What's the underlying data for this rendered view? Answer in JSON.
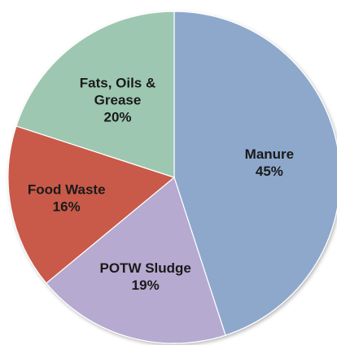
{
  "chart_data": {
    "type": "pie",
    "title": "",
    "start_angle_deg": 0,
    "direction": "clockwise",
    "slices": [
      {
        "label": "Manure",
        "value": 45,
        "percent_label": "45%",
        "color": "#8ea8cc",
        "label_lines": [
          "Manure",
          "45%"
        ]
      },
      {
        "label": "POTW Sludge",
        "value": 19,
        "percent_label": "19%",
        "color": "#b6aad0",
        "label_lines": [
          "POTW Sludge",
          "19%"
        ]
      },
      {
        "label": "Food Waste",
        "value": 16,
        "percent_label": "16%",
        "color": "#c95a49",
        "label_lines": [
          "Food Waste",
          "16%"
        ]
      },
      {
        "label": "Fats, Oils & Grease",
        "value": 20,
        "percent_label": "20%",
        "color": "#9dc7b1",
        "label_lines": [
          "Fats, Oils &",
          "Grease",
          "20%"
        ]
      }
    ],
    "legend": "none"
  }
}
